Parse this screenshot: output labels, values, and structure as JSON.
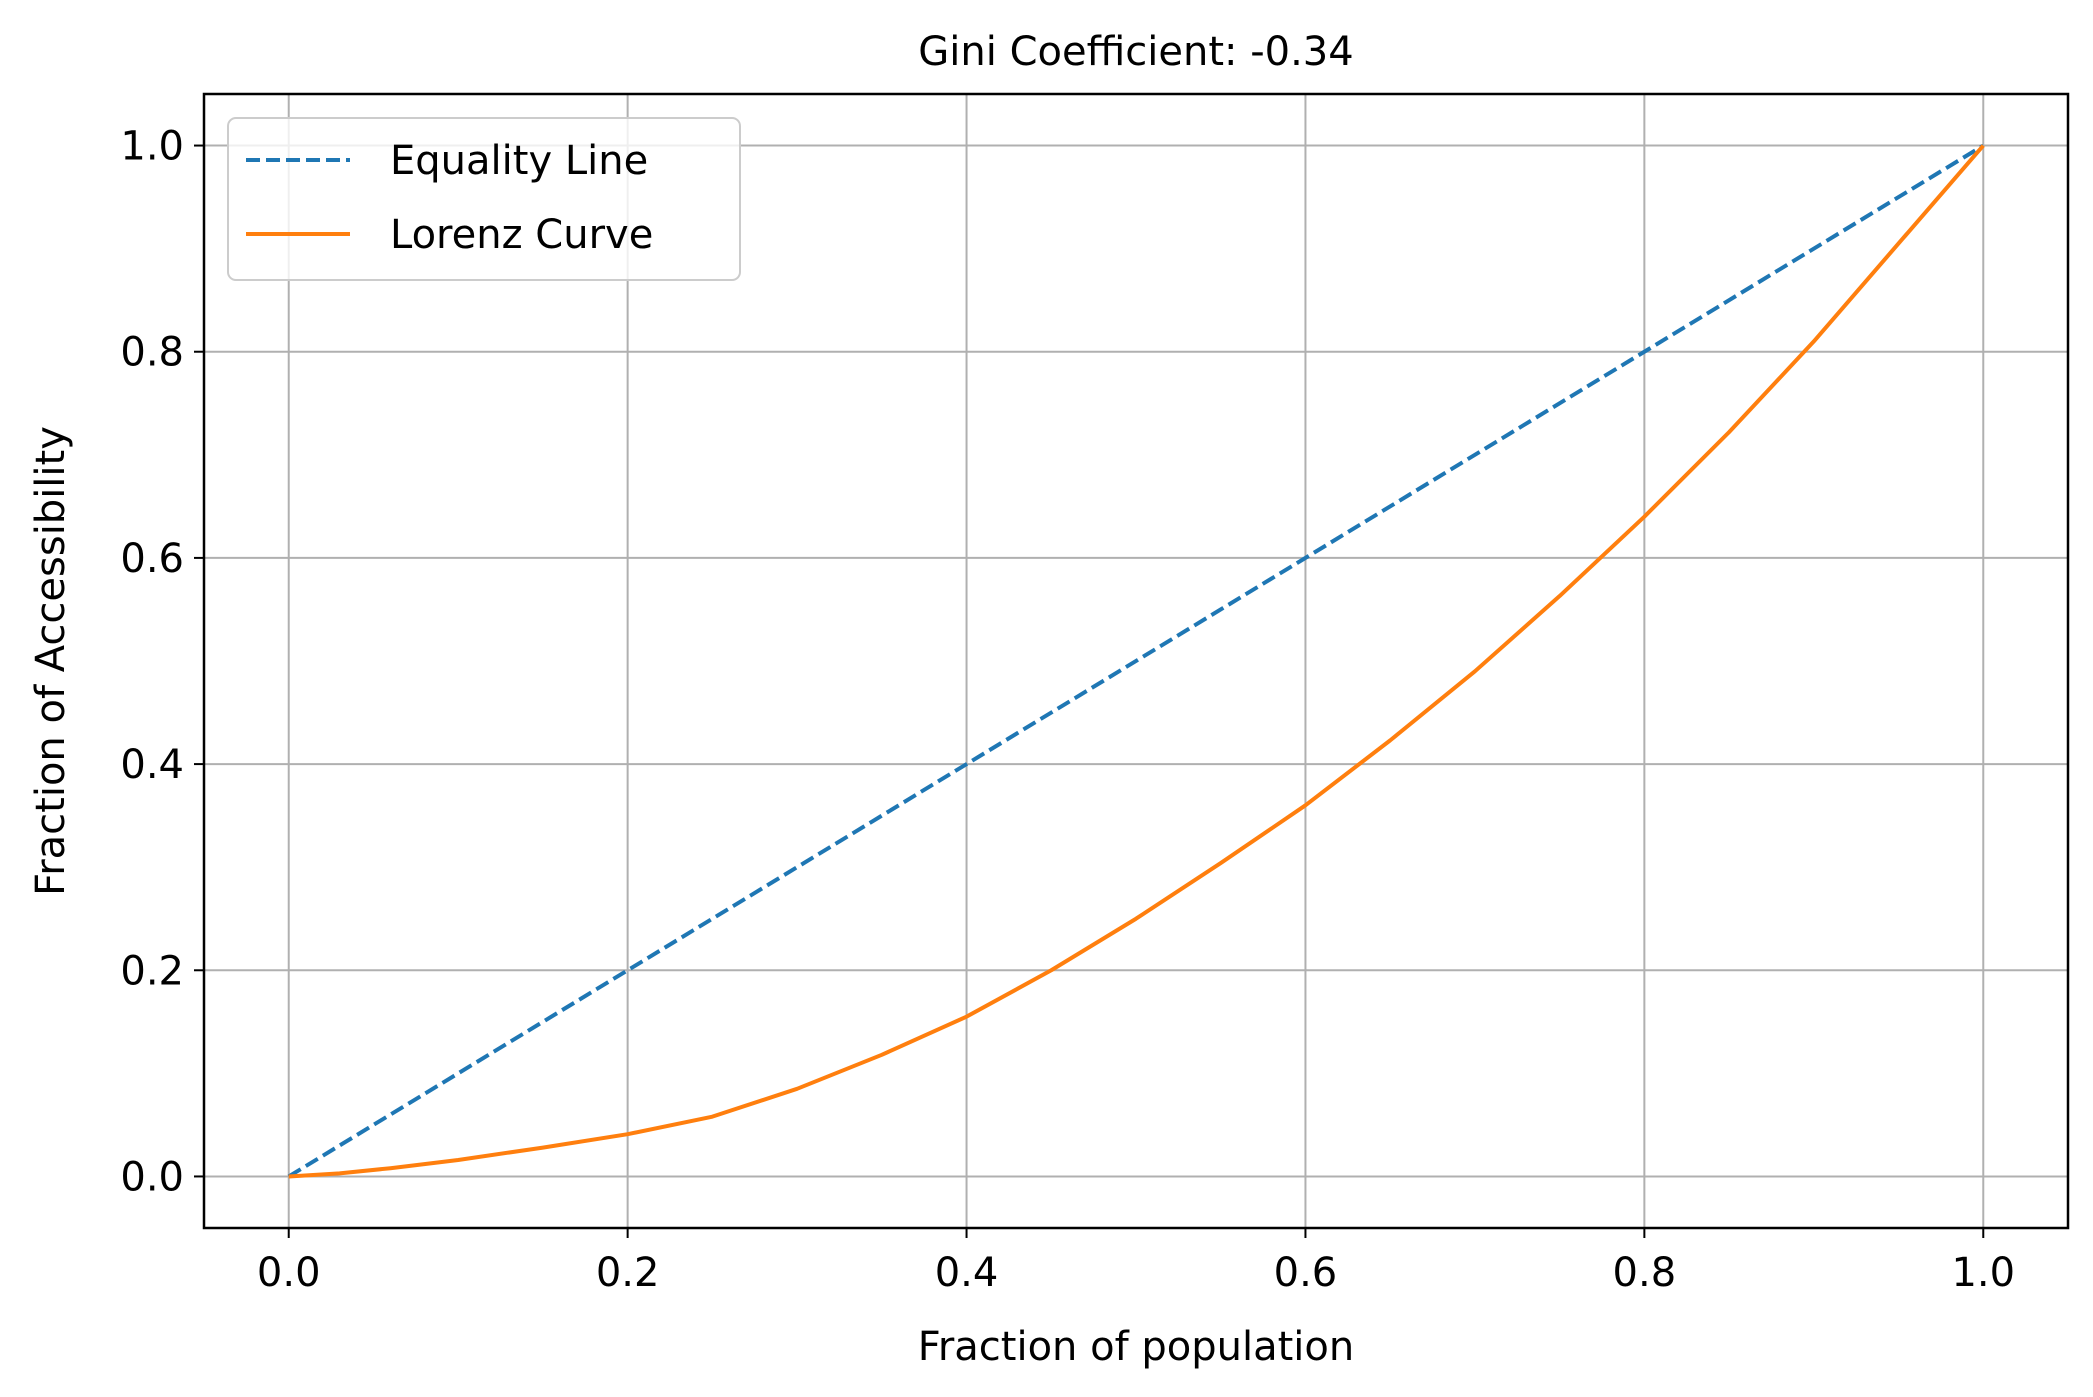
{
  "chart_data": {
    "type": "line",
    "title": "Gini Coefficient: -0.34",
    "xlabel": "Fraction of population",
    "ylabel": "Fraction of Accessibility",
    "xlim": [
      -0.05,
      1.05
    ],
    "ylim": [
      -0.05,
      1.05
    ],
    "xticks": [
      "0.0",
      "0.2",
      "0.4",
      "0.6",
      "0.8",
      "1.0"
    ],
    "yticks": [
      "0.0",
      "0.2",
      "0.4",
      "0.6",
      "0.8",
      "1.0"
    ],
    "grid": true,
    "legend_position": "top-left",
    "series": [
      {
        "name": "Equality Line",
        "color": "#1f77b4",
        "style": "dashed",
        "x": [
          0.0,
          1.0
        ],
        "y": [
          0.0,
          1.0
        ]
      },
      {
        "name": "Lorenz Curve",
        "color": "#ff7f0e",
        "style": "solid",
        "x": [
          0.0,
          0.03,
          0.06,
          0.1,
          0.15,
          0.2,
          0.25,
          0.3,
          0.35,
          0.4,
          0.45,
          0.5,
          0.55,
          0.6,
          0.65,
          0.7,
          0.75,
          0.8,
          0.85,
          0.9,
          0.95,
          1.0
        ],
        "y": [
          0.0,
          0.003,
          0.008,
          0.016,
          0.028,
          0.041,
          0.058,
          0.085,
          0.118,
          0.155,
          0.2,
          0.25,
          0.304,
          0.36,
          0.423,
          0.49,
          0.563,
          0.64,
          0.722,
          0.81,
          0.905,
          1.0
        ]
      }
    ]
  }
}
